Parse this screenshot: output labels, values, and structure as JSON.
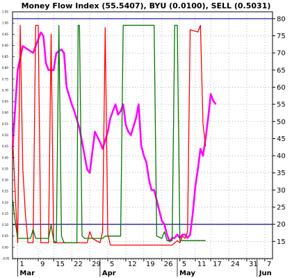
{
  "chart_data": {
    "type": "line",
    "title": "Money Flow Index (55.5407), BYU (0.0100), SELL (0.5031)",
    "y_axis_right": {
      "ticks": [
        15,
        20,
        25,
        30,
        35,
        40,
        45,
        50,
        55,
        60,
        65,
        70,
        75,
        80
      ],
      "range": [
        10,
        82
      ]
    },
    "y_axis_left": {
      "ticks": [
        "1.05",
        "1.00",
        "0.95",
        "0.90",
        "0.85",
        "0.80",
        "0.75",
        "0.70",
        "0.65",
        "0.60",
        "0.55",
        "0.50",
        "0.45",
        "0.40",
        "0.35",
        "0.30",
        "0.25",
        "0.20",
        "0.15",
        "0.10",
        "0.05",
        "0.00",
        "-0.05"
      ],
      "range": [
        -0.05,
        1.05
      ]
    },
    "x_axis": {
      "day_ticks": [
        {
          "label": "1",
          "day": 0
        },
        {
          "label": "9",
          "day": 8
        },
        {
          "label": "15",
          "day": 14
        },
        {
          "label": "22",
          "day": 21
        },
        {
          "label": "29",
          "day": 28
        },
        {
          "label": "5",
          "day": 35
        },
        {
          "label": "12",
          "day": 42
        },
        {
          "label": "19",
          "day": 49
        },
        {
          "label": "26",
          "day": 56
        },
        {
          "label": "5",
          "day": 63
        },
        {
          "label": "11",
          "day": 69
        },
        {
          "label": "17",
          "day": 75
        },
        {
          "label": "24",
          "day": 82
        },
        {
          "label": "31",
          "day": 89
        },
        {
          "label": "7",
          "day": 96
        }
      ],
      "month_labels": [
        {
          "label": "Mar",
          "day": 0
        },
        {
          "label": "Apr",
          "day": 32
        },
        {
          "label": "May",
          "day": 62
        },
        {
          "label": "Jun",
          "day": 93
        }
      ],
      "range": [
        -2,
        99
      ]
    },
    "reference_lines": [
      20,
      80
    ],
    "series": [
      {
        "color": "#ff00ff",
        "axis": "right",
        "points": [
          [
            -2,
            42
          ],
          [
            0,
            65
          ],
          [
            2,
            72
          ],
          [
            4,
            71
          ],
          [
            6,
            70
          ],
          [
            7,
            72
          ],
          [
            9,
            76
          ],
          [
            10,
            75
          ],
          [
            11,
            67
          ],
          [
            12,
            65
          ],
          [
            14,
            65
          ],
          [
            15,
            70
          ],
          [
            17,
            71
          ],
          [
            18,
            70
          ],
          [
            19,
            60
          ],
          [
            21,
            55
          ],
          [
            22,
            53
          ],
          [
            24,
            48
          ],
          [
            25,
            44
          ],
          [
            26,
            40
          ],
          [
            27,
            36
          ],
          [
            28,
            35
          ],
          [
            30,
            47
          ],
          [
            32,
            44
          ],
          [
            33,
            42
          ],
          [
            35,
            47
          ],
          [
            36,
            51
          ],
          [
            38,
            55
          ],
          [
            39,
            52
          ],
          [
            40,
            53
          ],
          [
            41,
            55
          ],
          [
            42,
            49
          ],
          [
            43,
            47
          ],
          [
            44,
            46
          ],
          [
            46,
            51
          ],
          [
            47,
            55
          ],
          [
            48,
            43
          ],
          [
            49,
            40
          ],
          [
            50,
            38
          ],
          [
            51,
            33
          ],
          [
            52,
            30
          ],
          [
            53,
            30
          ],
          [
            54,
            27
          ],
          [
            55,
            24
          ],
          [
            56,
            21
          ],
          [
            57,
            20
          ],
          [
            58,
            17
          ],
          [
            59,
            15
          ],
          [
            60,
            16
          ],
          [
            61,
            16
          ],
          [
            62,
            17
          ],
          [
            63,
            16
          ],
          [
            64,
            17
          ],
          [
            65,
            17
          ],
          [
            66,
            16
          ],
          [
            67,
            17
          ],
          [
            68,
            23
          ],
          [
            69,
            31
          ],
          [
            70,
            36
          ],
          [
            71,
            42
          ],
          [
            72,
            40
          ],
          [
            73,
            45
          ],
          [
            74,
            51
          ],
          [
            75,
            58
          ],
          [
            76,
            56
          ],
          [
            77,
            55
          ]
        ]
      },
      {
        "color": "#ff0000",
        "axis": "left",
        "points": [
          [
            -2,
            0.5
          ],
          [
            -1,
            0.25
          ],
          [
            0,
            0.02
          ],
          [
            1,
            0.99
          ],
          [
            2,
            0.35
          ],
          [
            3,
            0.15
          ],
          [
            4,
            0.02
          ],
          [
            5,
            0.02
          ],
          [
            6,
            0.02
          ],
          [
            7,
            0.99
          ],
          [
            8,
            0.99
          ],
          [
            9,
            0.02
          ],
          [
            12,
            0.02
          ],
          [
            13,
            0.95
          ],
          [
            14,
            0.02
          ],
          [
            27,
            0.02
          ],
          [
            28,
            0.07
          ],
          [
            29,
            0.04
          ],
          [
            32,
            0.02
          ],
          [
            33,
            0.07
          ],
          [
            34,
            0.98
          ],
          [
            35,
            0.06
          ],
          [
            36,
            0.01
          ],
          [
            60,
            0.01
          ],
          [
            61,
            0.02
          ],
          [
            62,
            0.03
          ],
          [
            63,
            0.02
          ],
          [
            64,
            0.05
          ],
          [
            65,
            0.04
          ],
          [
            66,
            0.07
          ],
          [
            67,
            0.97
          ],
          [
            70,
            0.96
          ],
          [
            71,
            0.99
          ],
          [
            72,
            0.55
          ],
          [
            73,
            0.45
          ]
        ]
      },
      {
        "color": "#007700",
        "axis": "left",
        "points": [
          [
            -2,
            0.22
          ],
          [
            -1,
            0.12
          ],
          [
            0,
            0.04
          ],
          [
            5,
            0.04
          ],
          [
            6,
            0.08
          ],
          [
            7,
            0.04
          ],
          [
            12,
            0.04
          ],
          [
            13,
            0.1
          ],
          [
            14,
            0.03
          ],
          [
            15,
            0.02
          ],
          [
            16,
            0.99
          ],
          [
            17,
            0.05
          ],
          [
            18,
            0.02
          ],
          [
            23,
            0.02
          ],
          [
            23.5,
            0.99
          ],
          [
            24,
            0.99
          ],
          [
            25,
            0.05
          ],
          [
            26,
            0.04
          ],
          [
            33,
            0.04
          ],
          [
            34,
            0.05
          ],
          [
            40,
            0.05
          ],
          [
            41,
            0.99
          ],
          [
            53,
            0.99
          ],
          [
            54,
            0.05
          ],
          [
            56,
            0.04
          ],
          [
            57,
            0.07
          ],
          [
            58,
            0.03
          ],
          [
            60,
            0.03
          ],
          [
            61,
            0.99
          ],
          [
            62,
            0.99
          ],
          [
            63,
            0.03
          ],
          [
            73,
            0.03
          ]
        ]
      }
    ]
  }
}
